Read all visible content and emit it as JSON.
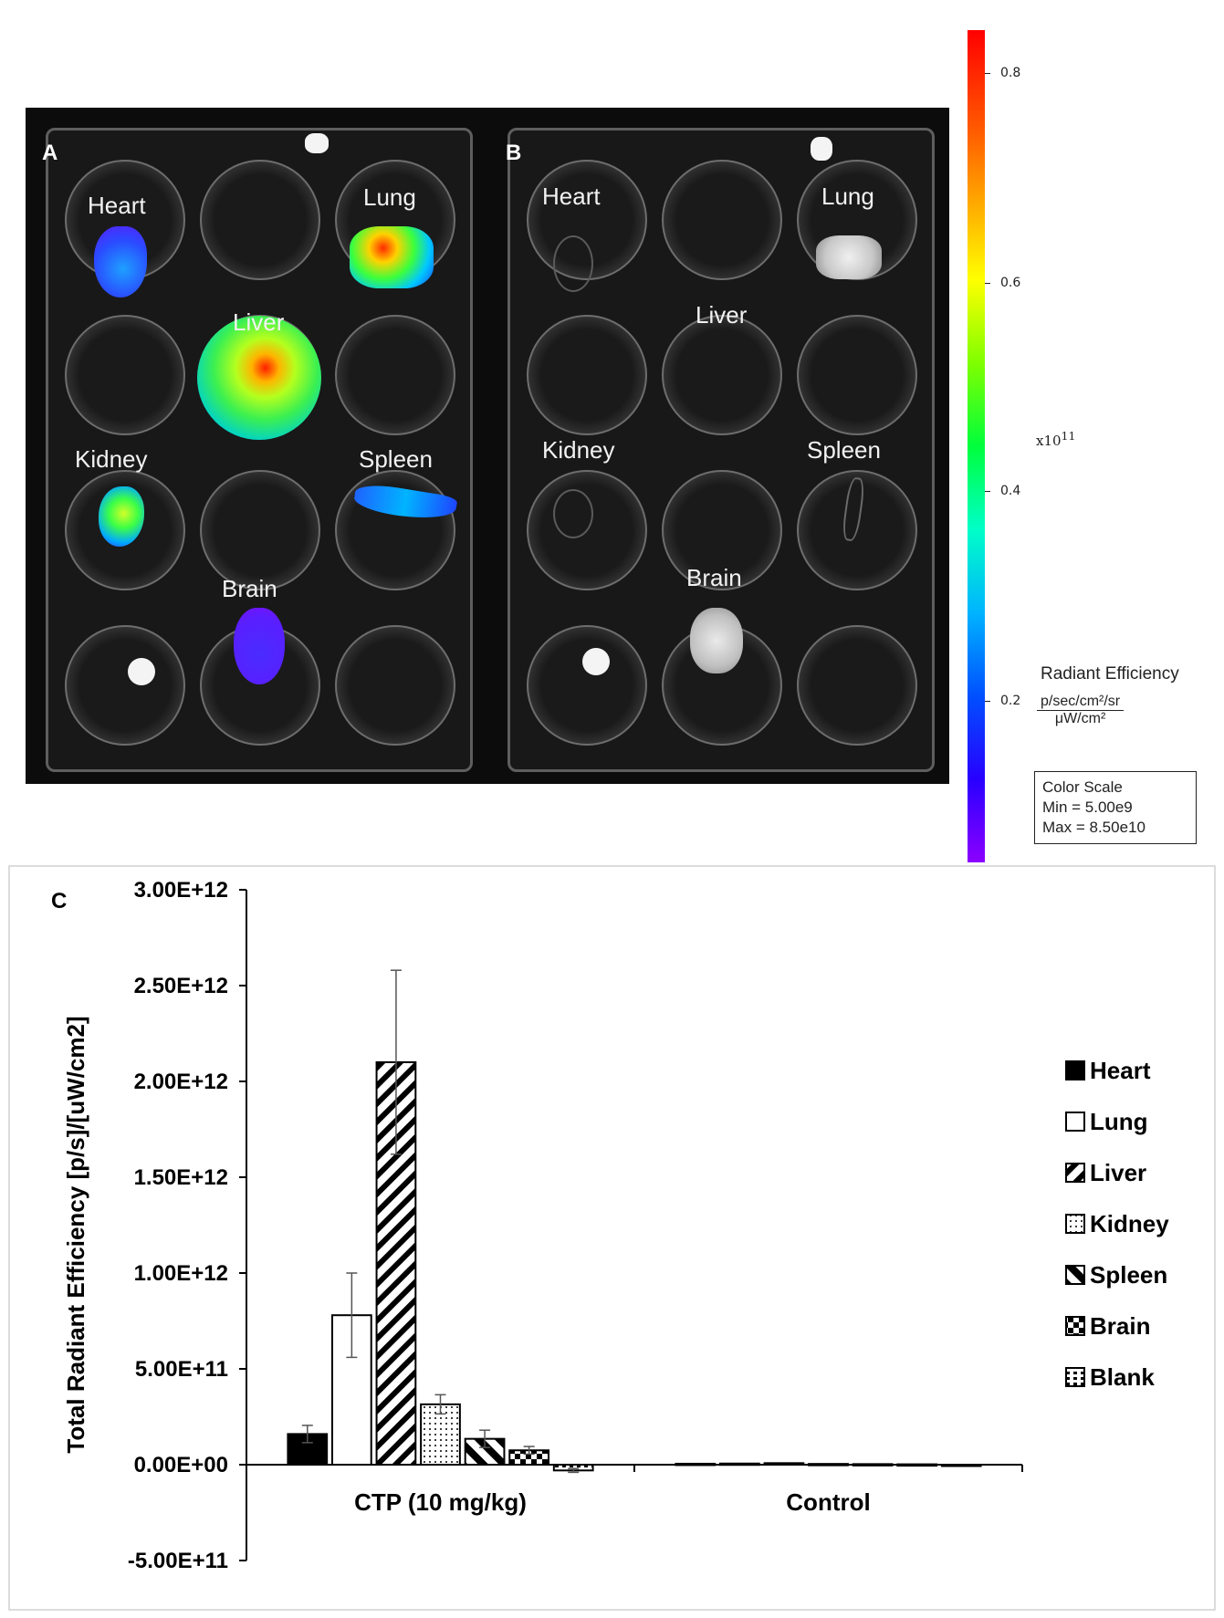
{
  "panels": {
    "A": {
      "label": "A",
      "organs": [
        "Heart",
        "Lung",
        "Liver",
        "Kidney",
        "Spleen",
        "Brain"
      ]
    },
    "B": {
      "label": "B",
      "organs": [
        "Heart",
        "Lung",
        "Liver",
        "Kidney",
        "Spleen",
        "Brain"
      ]
    }
  },
  "colorbar": {
    "ticks": [
      "0.8",
      "0.6",
      "0.4",
      "0.2"
    ],
    "exponent_label": "x10",
    "exponent": "11",
    "title": "Radiant Efficiency",
    "unit_numerator": "p/sec/cm²/sr",
    "unit_denominator": "μW/cm²",
    "scale_title": "Color Scale",
    "scale_min": "Min = 5.00e9",
    "scale_max": "Max = 8.50e10"
  },
  "chart_data": {
    "type": "bar",
    "panel_label": "C",
    "ylabel": "Total Radiant Efficiency [p/s]/[uW/cm2]",
    "ylim": [
      -500000000000.0,
      3000000000000.0
    ],
    "ytick_labels": [
      "3.00E+12",
      "2.50E+12",
      "2.00E+12",
      "1.50E+12",
      "1.00E+12",
      "5.00E+11",
      "0.00E+00",
      "-5.00E+11"
    ],
    "ytick_values": [
      3000000000000.0,
      2500000000000.0,
      2000000000000.0,
      1500000000000.0,
      1000000000000.0,
      500000000000.0,
      0,
      -500000000000.0
    ],
    "categories": [
      "CTP (10 mg/kg)",
      "Control"
    ],
    "legend_position": "right",
    "series": [
      {
        "name": "Heart",
        "values": [
          160000000000.0,
          5000000000.0
        ],
        "errors": [
          45000000000.0,
          0
        ],
        "pattern": "solid"
      },
      {
        "name": "Lung",
        "values": [
          780000000000.0,
          6000000000.0
        ],
        "errors": [
          220000000000.0,
          0
        ],
        "pattern": "open"
      },
      {
        "name": "Liver",
        "values": [
          2100000000000.0,
          8000000000.0
        ],
        "errors": [
          480000000000.0,
          0
        ],
        "pattern": "diag-wide"
      },
      {
        "name": "Kidney",
        "values": [
          315000000000.0,
          4000000000.0
        ],
        "errors": [
          50000000000.0,
          0
        ],
        "pattern": "dots"
      },
      {
        "name": "Spleen",
        "values": [
          135000000000.0,
          3000000000.0
        ],
        "errors": [
          45000000000.0,
          0
        ],
        "pattern": "diag-bold"
      },
      {
        "name": "Brain",
        "values": [
          75000000000.0,
          2000000000.0
        ],
        "errors": [
          20000000000.0,
          0
        ],
        "pattern": "checker"
      },
      {
        "name": "Blank",
        "values": [
          -30000000000.0,
          -2000000000.0
        ],
        "errors": [
          10000000000.0,
          0
        ],
        "pattern": "dashes"
      }
    ]
  }
}
